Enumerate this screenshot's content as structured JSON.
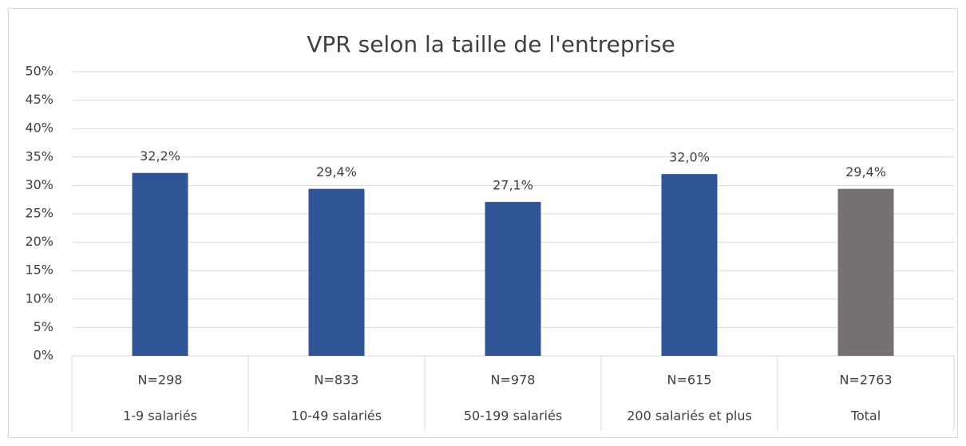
{
  "chart_data": {
    "type": "bar",
    "title": "VPR selon la taille de l'entreprise",
    "categories": [
      "1-9 salariés",
      "10-49 salariés",
      "50-199 salariés",
      "200 salariés et plus",
      "Total"
    ],
    "category_counts": [
      "N=298",
      "N=833",
      "N=978",
      "N=615",
      "N=2763"
    ],
    "values": [
      32.2,
      29.4,
      27.1,
      32.0,
      29.4
    ],
    "value_labels": [
      "32,2%",
      "29,4%",
      "27,1%",
      "32,0%",
      "29,4%"
    ],
    "colors": [
      "#2f5597",
      "#2f5597",
      "#2f5597",
      "#2f5597",
      "#767171"
    ],
    "ylim": [
      0,
      50
    ],
    "yticks": [
      {
        "value": 0,
        "label": "0%"
      },
      {
        "value": 5,
        "label": "5%"
      },
      {
        "value": 10,
        "label": "10%"
      },
      {
        "value": 15,
        "label": "15%"
      },
      {
        "value": 20,
        "label": "20%"
      },
      {
        "value": 25,
        "label": "25%"
      },
      {
        "value": 30,
        "label": "30%"
      },
      {
        "value": 35,
        "label": "35%"
      },
      {
        "value": 40,
        "label": "40%"
      },
      {
        "value": 45,
        "label": "45%"
      },
      {
        "value": 50,
        "label": "50%"
      }
    ],
    "grid": true
  }
}
